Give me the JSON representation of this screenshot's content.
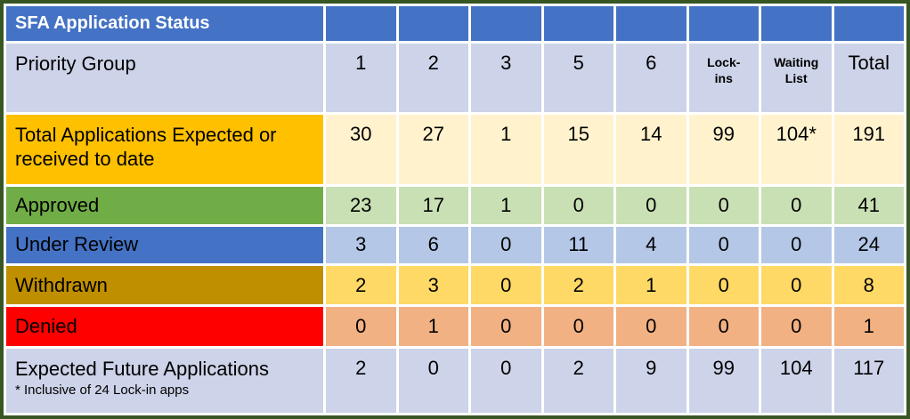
{
  "title": "SFA Application Status",
  "header": {
    "label": "Priority Group",
    "col1": "1",
    "col2": "2",
    "col3": "3",
    "col4": "5",
    "col5": "6",
    "lockins_line1": "Lock-",
    "lockins_line2": "ins",
    "waiting_line1": "Waiting",
    "waiting_line2": "List",
    "total": "Total"
  },
  "rows": [
    {
      "label": "Total Applications Expected or received to date",
      "values": [
        "30",
        "27",
        "1",
        "15",
        "14",
        "99",
        "104*",
        "191"
      ]
    },
    {
      "label": "Approved",
      "values": [
        "23",
        "17",
        "1",
        "0",
        "0",
        "0",
        "0",
        "41"
      ]
    },
    {
      "label": "Under Review",
      "values": [
        "3",
        "6",
        "0",
        "11",
        "4",
        "0",
        "0",
        "24"
      ]
    },
    {
      "label": "Withdrawn",
      "values": [
        "2",
        "3",
        "0",
        "2",
        "1",
        "0",
        "0",
        "8"
      ]
    },
    {
      "label": "Denied",
      "values": [
        "0",
        "1",
        "0",
        "0",
        "0",
        "0",
        "0",
        "1"
      ]
    },
    {
      "label": "Expected Future Applications",
      "footnote": "* Inclusive of 24 Lock-in apps",
      "values": [
        "2",
        "0",
        "0",
        "2",
        "9",
        "99",
        "104",
        "117"
      ]
    }
  ],
  "colors": {
    "outer_border": "#375623",
    "header_blue": "#4472C4",
    "band_lavender": "#CDD3E8",
    "total_label": "#FFC000",
    "total_cells": "#FFF2CC",
    "approved_label": "#70AD47",
    "approved_cells": "#C9E0B4",
    "under_review_label": "#4472C4",
    "under_review_cells": "#B4C7E7",
    "withdrawn_label": "#BF8F00",
    "withdrawn_cells": "#FFD966",
    "denied_label": "#FF0000",
    "denied_cells": "#F2B183",
    "gridline_white": "#FFFFFF"
  },
  "chart_data": {
    "type": "table",
    "title": "SFA Application Status",
    "columns": [
      "Priority Group",
      "1",
      "2",
      "3",
      "5",
      "6",
      "Lock-ins",
      "Waiting List",
      "Total"
    ],
    "rows": [
      {
        "label": "Total Applications Expected or received to date",
        "values": [
          30,
          27,
          1,
          15,
          14,
          99,
          "104*",
          191
        ]
      },
      {
        "label": "Approved",
        "values": [
          23,
          17,
          1,
          0,
          0,
          0,
          0,
          41
        ]
      },
      {
        "label": "Under Review",
        "values": [
          3,
          6,
          0,
          11,
          4,
          0,
          0,
          24
        ]
      },
      {
        "label": "Withdrawn",
        "values": [
          2,
          3,
          0,
          2,
          1,
          0,
          0,
          8
        ]
      },
      {
        "label": "Denied",
        "values": [
          0,
          1,
          0,
          0,
          0,
          0,
          0,
          1
        ]
      },
      {
        "label": "Expected Future Applications",
        "values": [
          2,
          0,
          0,
          2,
          9,
          99,
          104,
          117
        ]
      }
    ],
    "annotations": [
      "* Inclusive of 24 Lock-in apps"
    ]
  }
}
